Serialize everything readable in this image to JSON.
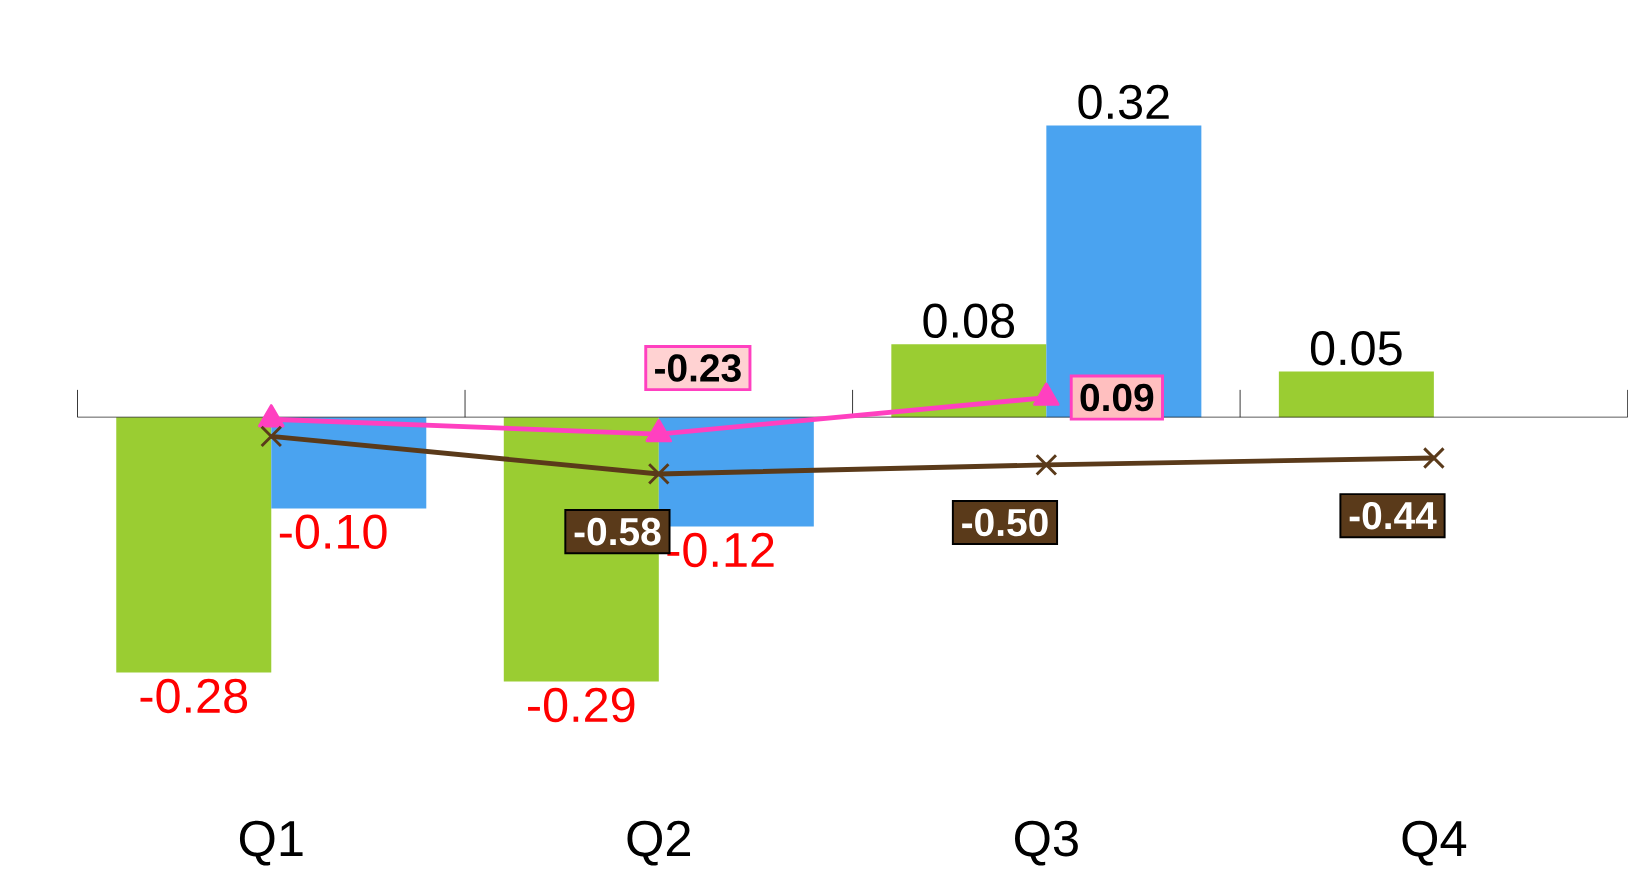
{
  "chart_data": {
    "type": "bar",
    "categories": [
      "Q1",
      "Q2",
      "Q3",
      "Q4"
    ],
    "series": [
      {
        "color": "#9acd32",
        "values": [
          -0.28,
          -0.29,
          0.08,
          0.05
        ],
        "value_labels": [
          "-0.28",
          "-0.29",
          "0.08",
          "0.05"
        ]
      },
      {
        "color": "#4aa3f0",
        "values": [
          -0.1,
          -0.12,
          0.32,
          null
        ],
        "value_labels": [
          "-0.10",
          "-0.12",
          "0.32",
          null
        ]
      },
      {
        "type": "line",
        "axis": "y2",
        "color": "#ff40c0",
        "marker": "triangle",
        "values": [
          -0.1,
          -0.23,
          0.09,
          null
        ],
        "value_labels": [
          null,
          "-0.23",
          "0.09",
          null
        ]
      },
      {
        "type": "line",
        "axis": "y2",
        "color": "#5a3a1a",
        "marker": "cross",
        "values": [
          -0.25,
          -0.58,
          -0.5,
          -0.44
        ],
        "value_labels": [
          null,
          "-0.58",
          "-0.50",
          "-0.44"
        ]
      }
    ]
  }
}
